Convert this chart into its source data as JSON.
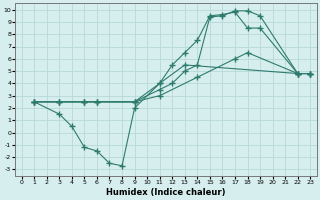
{
  "xlabel": "Humidex (Indice chaleur)",
  "xlim": [
    -0.5,
    23.5
  ],
  "ylim": [
    -3.5,
    10.5
  ],
  "xticks": [
    0,
    1,
    2,
    3,
    4,
    5,
    6,
    7,
    8,
    9,
    10,
    11,
    12,
    13,
    14,
    15,
    16,
    17,
    18,
    19,
    20,
    21,
    22,
    23
  ],
  "yticks": [
    -3,
    -2,
    -1,
    0,
    1,
    2,
    3,
    4,
    5,
    6,
    7,
    8,
    9,
    10
  ],
  "bg_color": "#d6eeee",
  "grid_color": "#b8d8d8",
  "line_color": "#2e7b6e",
  "line1_x": [
    1,
    3,
    5,
    6,
    9,
    11,
    12,
    13,
    14,
    15,
    16,
    17,
    18,
    19,
    22,
    23
  ],
  "line1_y": [
    2.5,
    2.5,
    2.5,
    2.5,
    2.5,
    3.5,
    4.0,
    5.0,
    5.5,
    9.4,
    9.5,
    9.9,
    9.9,
    9.5,
    4.8,
    4.8
  ],
  "line2_x": [
    1,
    3,
    5,
    6,
    9,
    11,
    12,
    13,
    14,
    15,
    16,
    17,
    18,
    19,
    22,
    23
  ],
  "line2_y": [
    2.5,
    2.5,
    2.5,
    2.5,
    2.5,
    4.0,
    5.5,
    6.5,
    7.5,
    9.5,
    9.6,
    9.8,
    8.5,
    8.5,
    4.8,
    4.8
  ],
  "line3_x": [
    1,
    3,
    4,
    5,
    6,
    7,
    8,
    9,
    11,
    13,
    22,
    23
  ],
  "line3_y": [
    2.5,
    1.5,
    0.5,
    -1.2,
    -1.5,
    -2.5,
    -2.7,
    2.0,
    4.0,
    5.5,
    4.8,
    4.8
  ],
  "line4_x": [
    1,
    3,
    5,
    6,
    9,
    11,
    14,
    17,
    18,
    22,
    23
  ],
  "line4_y": [
    2.5,
    2.5,
    2.5,
    2.5,
    2.5,
    3.0,
    4.5,
    6.0,
    6.5,
    4.8,
    4.8
  ],
  "marker": "+",
  "markersize": 4
}
